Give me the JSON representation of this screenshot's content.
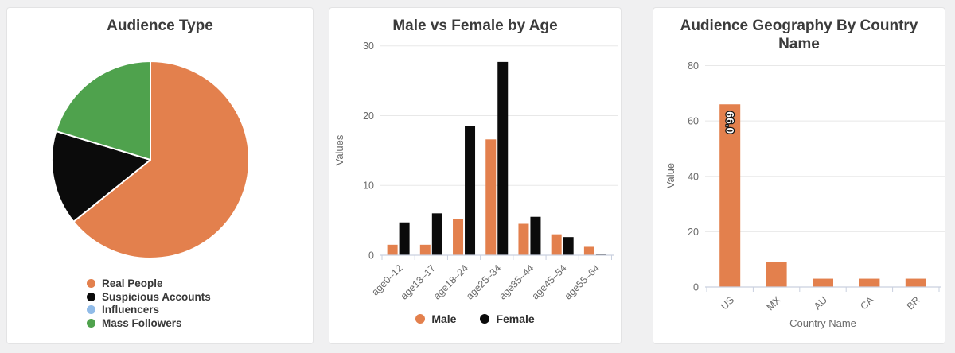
{
  "page": {
    "background": "#f0f0f1",
    "card_background": "#ffffff"
  },
  "theme": {
    "orange": "#e3804d",
    "black": "#0b0b0b",
    "blue": "#90bbe8",
    "green": "#4fa24d",
    "grid_color": "#e8e8e8",
    "axis_color": "#c9d0df",
    "tick_text_color": "#6a6a6a",
    "title_color": "#3b3b3b"
  },
  "chart_data": [
    {
      "type": "pie",
      "title": "Audience Type",
      "start_angle": "top",
      "direction": "clockwise",
      "slices": [
        {
          "label": "Real People",
          "value": 64.2,
          "color": "#e3804d"
        },
        {
          "label": "Suspicious Accounts",
          "value": 15.5,
          "color": "#0b0b0b"
        },
        {
          "label": "Influencers",
          "value": 0.0,
          "color": "#90bbe8"
        },
        {
          "label": "Mass Followers",
          "value": 20.3,
          "color": "#4fa24d"
        }
      ],
      "legend_position": "bottom-left"
    },
    {
      "type": "bar",
      "title": "Male vs Female by Age",
      "categories": [
        "age0–12",
        "age13–17",
        "age18–24",
        "age25–34",
        "age35–44",
        "age45–54",
        "age55–64"
      ],
      "series": [
        {
          "name": "Male",
          "color": "#e3804d",
          "values": [
            1.5,
            1.5,
            5.2,
            16.6,
            4.5,
            3.0,
            1.2
          ]
        },
        {
          "name": "Female",
          "color": "#0b0b0b",
          "values": [
            4.7,
            6.0,
            18.5,
            27.7,
            5.5,
            2.6,
            0.1
          ]
        }
      ],
      "xlabel": "",
      "ylabel": "Values",
      "ylim": [
        0,
        30
      ],
      "yticks": [
        0,
        10,
        20,
        30
      ],
      "grid": true,
      "legend_position": "bottom"
    },
    {
      "type": "bar",
      "title": "Audience Geography By Country Name",
      "categories": [
        "US",
        "MX",
        "AU",
        "CA",
        "BR"
      ],
      "values": [
        66,
        9,
        3,
        3,
        3
      ],
      "value_labels": [
        "66.0",
        "",
        "",
        "",
        ""
      ],
      "xlabel": "Country Name",
      "ylabel": "Value",
      "ylim": [
        0,
        80
      ],
      "yticks": [
        0,
        20,
        40,
        60,
        80
      ],
      "grid": true,
      "legend_position": "none"
    }
  ]
}
